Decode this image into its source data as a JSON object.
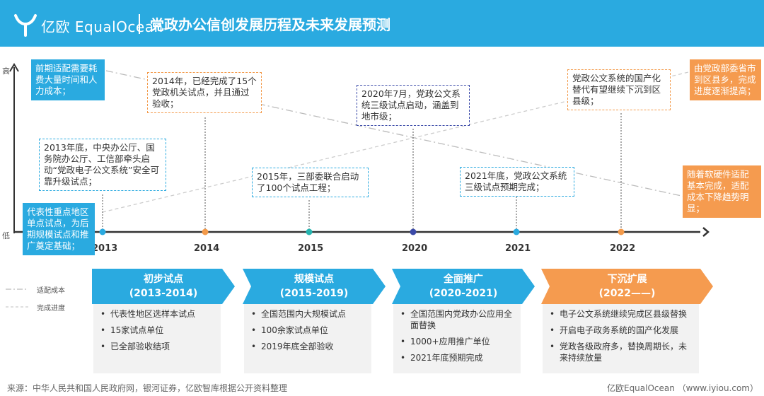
{
  "header": {
    "brand": "亿欧 EqualOcean",
    "title": "党政办公信创发展历程及未来发展预测"
  },
  "axis": {
    "high": "高",
    "low": "低"
  },
  "timeline": {
    "years": [
      "2013",
      "2014",
      "2015",
      "2020",
      "2021",
      "2022"
    ],
    "dot_colors": [
      "#2aaae0",
      "#f39a4a",
      "#26b5b0",
      "#3b4aa8",
      "#2aaae0",
      "#f39a4a"
    ]
  },
  "notes": {
    "n2013": "2013年底，中央办公厅、国务院办公厅、工信部牵头启动“党政电子公文系统”安全可靠升级试点；",
    "n2014": "2014年，已经完成了15个党政机关试点，并且通过验收；",
    "n2015": "2015年，三部委联合启动了100个试点工程；",
    "n2020": "2020年7月，党政公文系统三级试点启动，涵盖到地市级；",
    "n2021": "2021年底，党政公文系统三级试点预期完成；",
    "n2022": "党政公文系统的国产化替代有望继续下沉到区县级；"
  },
  "callouts": {
    "top_left": "前期适配需要耗费大量时间和人力成本；",
    "bottom_left": "代表性重点地区单点试点，为后期规模试点和推广奠定基础；",
    "top_right": "由党政部委省市到区县乡，完成进度逐渐提高；",
    "mid_right": "随着软硬件适配基本完成，适配成本下降趋势明显；"
  },
  "legend": {
    "cost": "适配成本",
    "progress": "完成进度"
  },
  "phases": [
    {
      "name": "初步试点",
      "range": "(2013-2014)",
      "color": "#2aaae0",
      "items": [
        "代表性地区选样本试点",
        "15家试点单位",
        "已全部验收结项"
      ]
    },
    {
      "name": "规模试点",
      "range": "(2015-2019)",
      "color": "#2aaae0",
      "items": [
        "全国范围内大规模试点",
        "100余家试点单位",
        "2019年底全部验收"
      ]
    },
    {
      "name": "全面推广",
      "range": "(2020-2021)",
      "color": "#2aaae0",
      "items": [
        "全国范围内党政办公应用全面替换",
        "1000+应用推广单位",
        "2021年底预期完成"
      ]
    },
    {
      "name": "下沉扩展",
      "range": "(2022——)",
      "color": "#f59b4f",
      "items": [
        "电子公文系统继续完成区县级替换",
        "开启电子政务系统的国产化发展",
        "党政各级政府多，替换周期长，未来持续放量"
      ]
    }
  ],
  "footer": {
    "source": "来源：中华人民共和国人民政府网，银河证券，亿欧智库根据公开资料整理",
    "credit": "亿欧EqualOcean （www.iyiou.com）"
  }
}
